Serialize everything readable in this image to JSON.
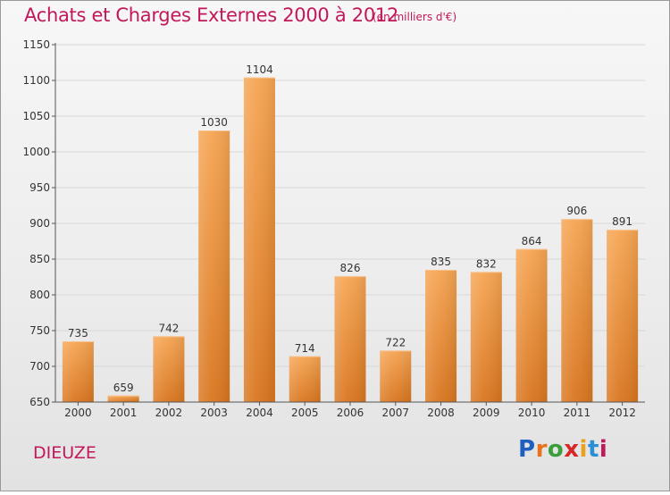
{
  "header": {
    "title": "Achats et Charges Externes 2000 à 2012",
    "subtitle": "(en milliers d'€)"
  },
  "footer": {
    "commune": "DIEUZE",
    "logo": {
      "text": "Proxiti",
      "letter_colors": [
        "#1f5fbf",
        "#e8731c",
        "#3a9e3a",
        "#d62828",
        "#e8a21c",
        "#2a8fd6",
        "#c2185b"
      ]
    }
  },
  "colors": {
    "bar_top": "#f6a553",
    "bar_bottom": "#d9761f",
    "accent": "#c2185b",
    "grid": "#d7d7d7",
    "axis": "#555555"
  },
  "chart_data": {
    "type": "bar",
    "title": "Achats et Charges Externes 2000 à 2012",
    "subtitle": "(en milliers d'€)",
    "xlabel": "",
    "ylabel": "",
    "categories": [
      "2000",
      "2001",
      "2002",
      "2003",
      "2004",
      "2005",
      "2006",
      "2007",
      "2008",
      "2009",
      "2010",
      "2011",
      "2012"
    ],
    "values": [
      735,
      659,
      742,
      1030,
      1104,
      714,
      826,
      722,
      835,
      832,
      864,
      906,
      891
    ],
    "ylim": [
      650,
      1150
    ],
    "yticks": [
      650,
      700,
      750,
      800,
      850,
      900,
      950,
      1000,
      1050,
      1100,
      1150
    ],
    "grid": true,
    "data_labels": true
  }
}
